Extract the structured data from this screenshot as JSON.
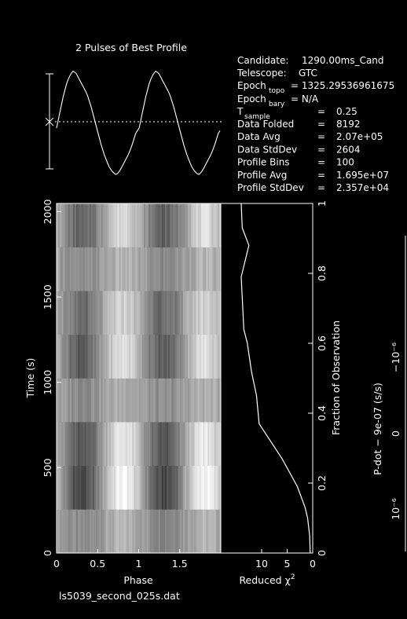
{
  "chart_data": [
    {
      "type": "line",
      "title": "2 Pulses of Best Profile",
      "x": [
        0.0,
        0.02,
        0.04,
        0.06,
        0.08,
        0.1,
        0.12,
        0.14,
        0.16,
        0.18,
        0.2,
        0.22,
        0.24,
        0.26,
        0.28,
        0.3,
        0.32,
        0.34,
        0.36,
        0.38,
        0.4,
        0.42,
        0.44,
        0.46,
        0.48,
        0.5,
        0.52,
        0.54,
        0.56,
        0.58,
        0.6,
        0.62,
        0.64,
        0.66,
        0.68,
        0.7,
        0.72,
        0.74,
        0.76,
        0.78,
        0.8,
        0.82,
        0.84,
        0.86,
        0.88,
        0.9,
        0.92,
        0.94,
        0.96,
        0.98
      ],
      "values": [
        -0.1,
        0.05,
        0.2,
        0.35,
        0.5,
        0.62,
        0.74,
        0.83,
        0.9,
        0.95,
        0.99,
        0.97,
        0.94,
        0.88,
        0.82,
        0.76,
        0.7,
        0.64,
        0.58,
        0.5,
        0.4,
        0.3,
        0.18,
        0.06,
        -0.06,
        -0.18,
        -0.3,
        -0.42,
        -0.52,
        -0.62,
        -0.7,
        -0.78,
        -0.85,
        -0.9,
        -0.94,
        -0.97,
        -0.99,
        -0.97,
        -0.93,
        -0.88,
        -0.82,
        -0.76,
        -0.7,
        -0.64,
        -0.57,
        -0.49,
        -0.4,
        -0.3,
        -0.2,
        -0.15
      ],
      "pulses": 2,
      "ylim": [
        -1.2,
        1.3
      ]
    },
    {
      "type": "heatmap",
      "xlabel": "Phase",
      "ylabel": "Time (s)",
      "x_ticks": [
        "0",
        "0.5",
        "1",
        "1.5"
      ],
      "y_ticks": [
        "0",
        "500",
        "1000",
        "1500",
        "2000"
      ],
      "xlim": [
        0,
        2
      ],
      "ylim": [
        0,
        2048
      ],
      "bands_contrast": [
        0.25,
        1.0,
        0.85,
        0.2,
        0.75,
        0.6,
        0.25,
        0.7
      ]
    },
    {
      "type": "line",
      "xlabel": "Reduced χ²",
      "xlabel_main": "Reduced χ",
      "xlabel_sup": "2",
      "ylabel": "Fraction of Observation",
      "x_ticks": [
        "10",
        "5",
        "0"
      ],
      "y_ticks": [
        "0",
        "0.2",
        "0.4",
        "0.6",
        "0.8",
        "1"
      ],
      "xlim": [
        18,
        0
      ],
      "ylim": [
        0,
        1
      ],
      "x": [
        0.5,
        0.6,
        1.0,
        1.5,
        3.0,
        6.0,
        10.5,
        11.0,
        12.0,
        12.8,
        13.5,
        14.0,
        12.5,
        13.8,
        14.0
      ],
      "y": [
        0.0,
        0.05,
        0.1,
        0.13,
        0.19,
        0.27,
        0.37,
        0.45,
        0.52,
        0.6,
        0.64,
        0.79,
        0.88,
        0.93,
        1.0
      ]
    },
    {
      "type": "scatter",
      "ylabel": "P-dot − 9e-07 (s/s)",
      "y_ticks": [
        "10⁻⁶",
        "0",
        "−10⁻⁶"
      ]
    }
  ],
  "info": {
    "candidate_label": "Candidate:",
    "candidate_value": "1290.00ms_Cand",
    "telescope_label": "Telescope:",
    "telescope_value": "GTC",
    "epoch_topo_label": "Epoch",
    "epoch_topo_sub": "topo",
    "epoch_topo_value": "= 1325.29536961675",
    "epoch_bary_label": "Epoch",
    "epoch_bary_sub": "bary",
    "epoch_bary_value": "= N/A",
    "tsample_label": "T",
    "tsample_sub": "sample",
    "tsample_value": "0.25",
    "rows": [
      {
        "label": "Data Folded",
        "value": "8192"
      },
      {
        "label": "Data Avg",
        "value": "2.07e+05"
      },
      {
        "label": "Data StdDev",
        "value": "2604"
      },
      {
        "label": "Profile Bins",
        "value": "100"
      },
      {
        "label": "Profile Avg",
        "value": "1.695e+07"
      },
      {
        "label": "Profile StdDev",
        "value": "2.357e+04"
      }
    ],
    "equals": "="
  },
  "filename": "ls5039_second_025s.dat",
  "colors": {
    "background": "#000000",
    "foreground": "#ffffff"
  }
}
